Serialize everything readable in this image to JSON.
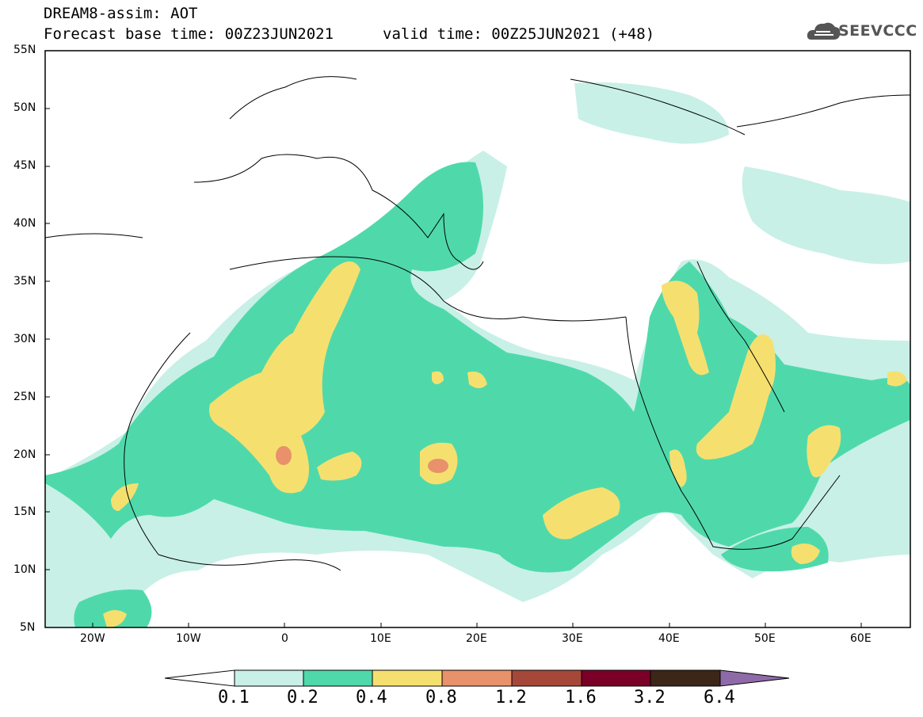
{
  "header": {
    "title": "DREAM8-assim: AOT",
    "base_time": "Forecast base time: 00Z23JUN2021",
    "valid_time": "valid time: 00Z25JUN2021 (+48)"
  },
  "logo": {
    "text": "SEEVCCC",
    "icon": "cloud-icon"
  },
  "axes": {
    "lat_labels": [
      "55N",
      "50N",
      "45N",
      "40N",
      "35N",
      "30N",
      "25N",
      "20N",
      "15N",
      "10N",
      "5N"
    ],
    "lon_labels": [
      "20W",
      "10W",
      "0",
      "10E",
      "20E",
      "30E",
      "40E",
      "50E",
      "60E"
    ]
  },
  "colorbar": {
    "levels": [
      "0.1",
      "0.2",
      "0.4",
      "0.8",
      "1.2",
      "1.6",
      "3.2",
      "6.4"
    ],
    "colors": [
      "#c8f0e6",
      "#4fd9ab",
      "#f5e06f",
      "#e8916a",
      "#a5483a",
      "#7a0028",
      "#3c2618",
      "#8f6aa8"
    ]
  }
}
